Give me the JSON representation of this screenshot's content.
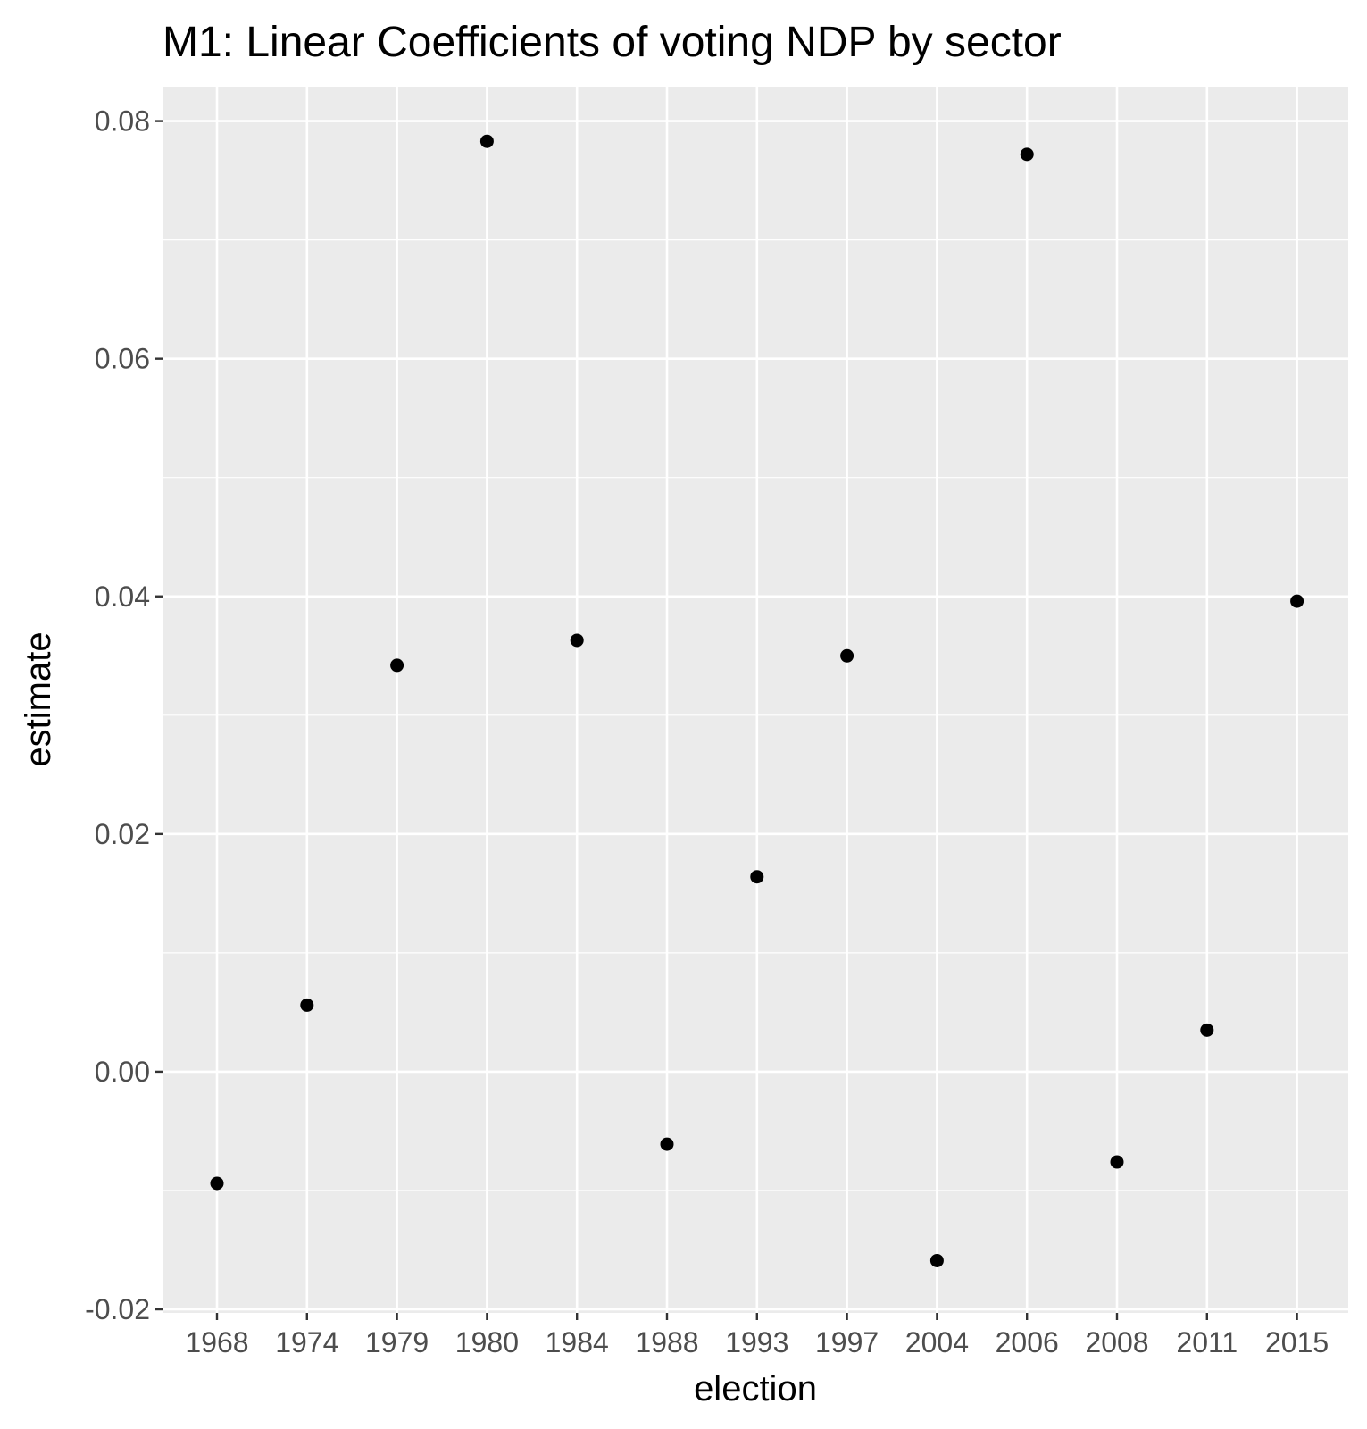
{
  "chart_data": {
    "type": "scatter",
    "title": "M1: Linear Coefficients of voting NDP by sector",
    "xlabel": "election",
    "ylabel": "estimate",
    "categories": [
      "1968",
      "1974",
      "1979",
      "1980",
      "1984",
      "1988",
      "1993",
      "1997",
      "2004",
      "2006",
      "2008",
      "2011",
      "2015"
    ],
    "values": [
      -0.0094,
      0.0056,
      0.0342,
      0.0783,
      0.0363,
      -0.0061,
      0.0164,
      0.035,
      -0.0159,
      0.0772,
      -0.0076,
      0.0035,
      0.0396
    ],
    "ylim": [
      -0.0203,
      0.0829
    ],
    "y_ticks": [
      -0.02,
      0.0,
      0.02,
      0.04,
      0.06,
      0.08
    ],
    "y_tick_labels": [
      "-0.02",
      "0.00",
      "0.02",
      "0.04",
      "0.06",
      "0.08"
    ],
    "grid": true,
    "legend": "none",
    "colors": {
      "panel_background": "#ebebeb",
      "grid_line": "#ffffff",
      "point": "#000000",
      "tick_mark": "#333333",
      "tick_label": "#4d4d4d"
    }
  }
}
